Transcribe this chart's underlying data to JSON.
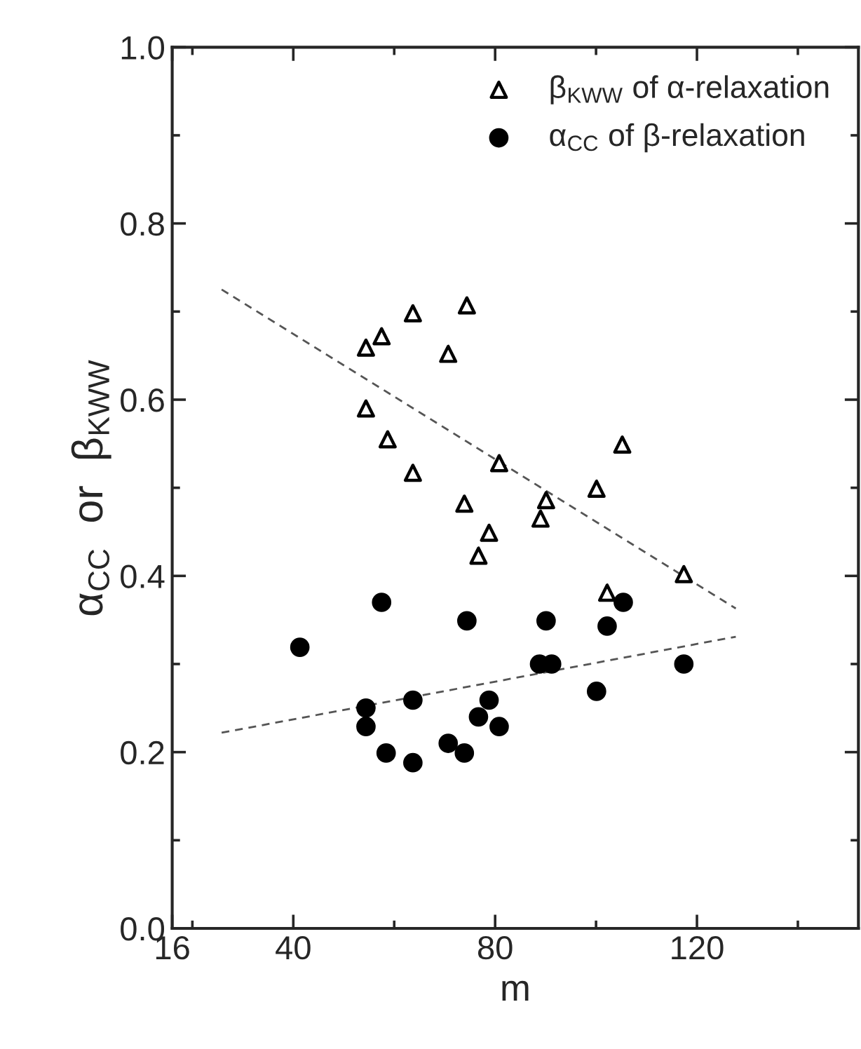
{
  "chart_data": {
    "type": "scatter",
    "xlabel": "m",
    "ylabel": "α$_{CC}$  or  β$_{KWW}$",
    "xlim": [
      16,
      152
    ],
    "xticks": [
      16,
      40,
      80,
      120,
      {
        "value": 20,
        "label": null
      },
      {
        "value": 60,
        "label": null
      },
      {
        "value": 100,
        "label": null
      },
      {
        "value": 140,
        "label": null
      }
    ],
    "ylim": [
      0,
      1
    ],
    "yticks": [
      {
        "value": 0,
        "label": "0.0"
      },
      0.2,
      0.4,
      0.6,
      0.8,
      {
        "value": 1,
        "label": "1.0"
      },
      {
        "value": 0.1,
        "label": null
      },
      {
        "value": 0.3,
        "label": null
      },
      {
        "value": 0.5,
        "label": null
      },
      {
        "value": 0.7,
        "label": null
      },
      {
        "value": 0.9,
        "label": null
      }
    ],
    "grid": false,
    "legend": "top right",
    "series": [
      {
        "name": "β$_{KWW}$ of α-relaxation",
        "color": "#000000",
        "marker": "triangle",
        "x": [
          54.4,
          57.5,
          63.7,
          74.4,
          70.7,
          54.4,
          58.7,
          105.2,
          80.8,
          63.7,
          100.1,
          73.9,
          90.1,
          89.0,
          78.8,
          76.7,
          117.4,
          102.2
        ],
        "values": [
          0.659,
          0.672,
          0.698,
          0.707,
          0.652,
          0.59,
          0.555,
          0.549,
          0.528,
          0.517,
          0.499,
          0.482,
          0.486,
          0.465,
          0.449,
          0.423,
          0.402,
          0.381
        ]
      },
      {
        "name": "α$_{CC}$ of β-relaxation",
        "color": "#000000",
        "marker": "circle",
        "x": [
          41.3,
          57.5,
          74.4,
          90.1,
          102.2,
          105.4,
          88.8,
          91.2,
          117.4,
          100.1,
          54.4,
          54.4,
          63.7,
          78.8,
          76.7,
          80.8,
          58.4,
          63.7,
          70.7,
          73.9
        ],
        "values": [
          0.319,
          0.37,
          0.349,
          0.349,
          0.343,
          0.37,
          0.3,
          0.3,
          0.3,
          0.269,
          0.25,
          0.229,
          0.259,
          0.259,
          0.24,
          0.229,
          0.199,
          0.188,
          0.21,
          0.199
        ]
      },
      {
        "type": "line",
        "color": "#555555",
        "line_style": "dashed",
        "x": [
          25.8,
          127.7
        ],
        "values": [
          0.725,
          0.363
        ]
      },
      {
        "type": "line",
        "color": "#555555",
        "line_style": "dashed",
        "x": [
          25.8,
          127.7
        ],
        "values": [
          0.222,
          0.331
        ]
      }
    ]
  }
}
